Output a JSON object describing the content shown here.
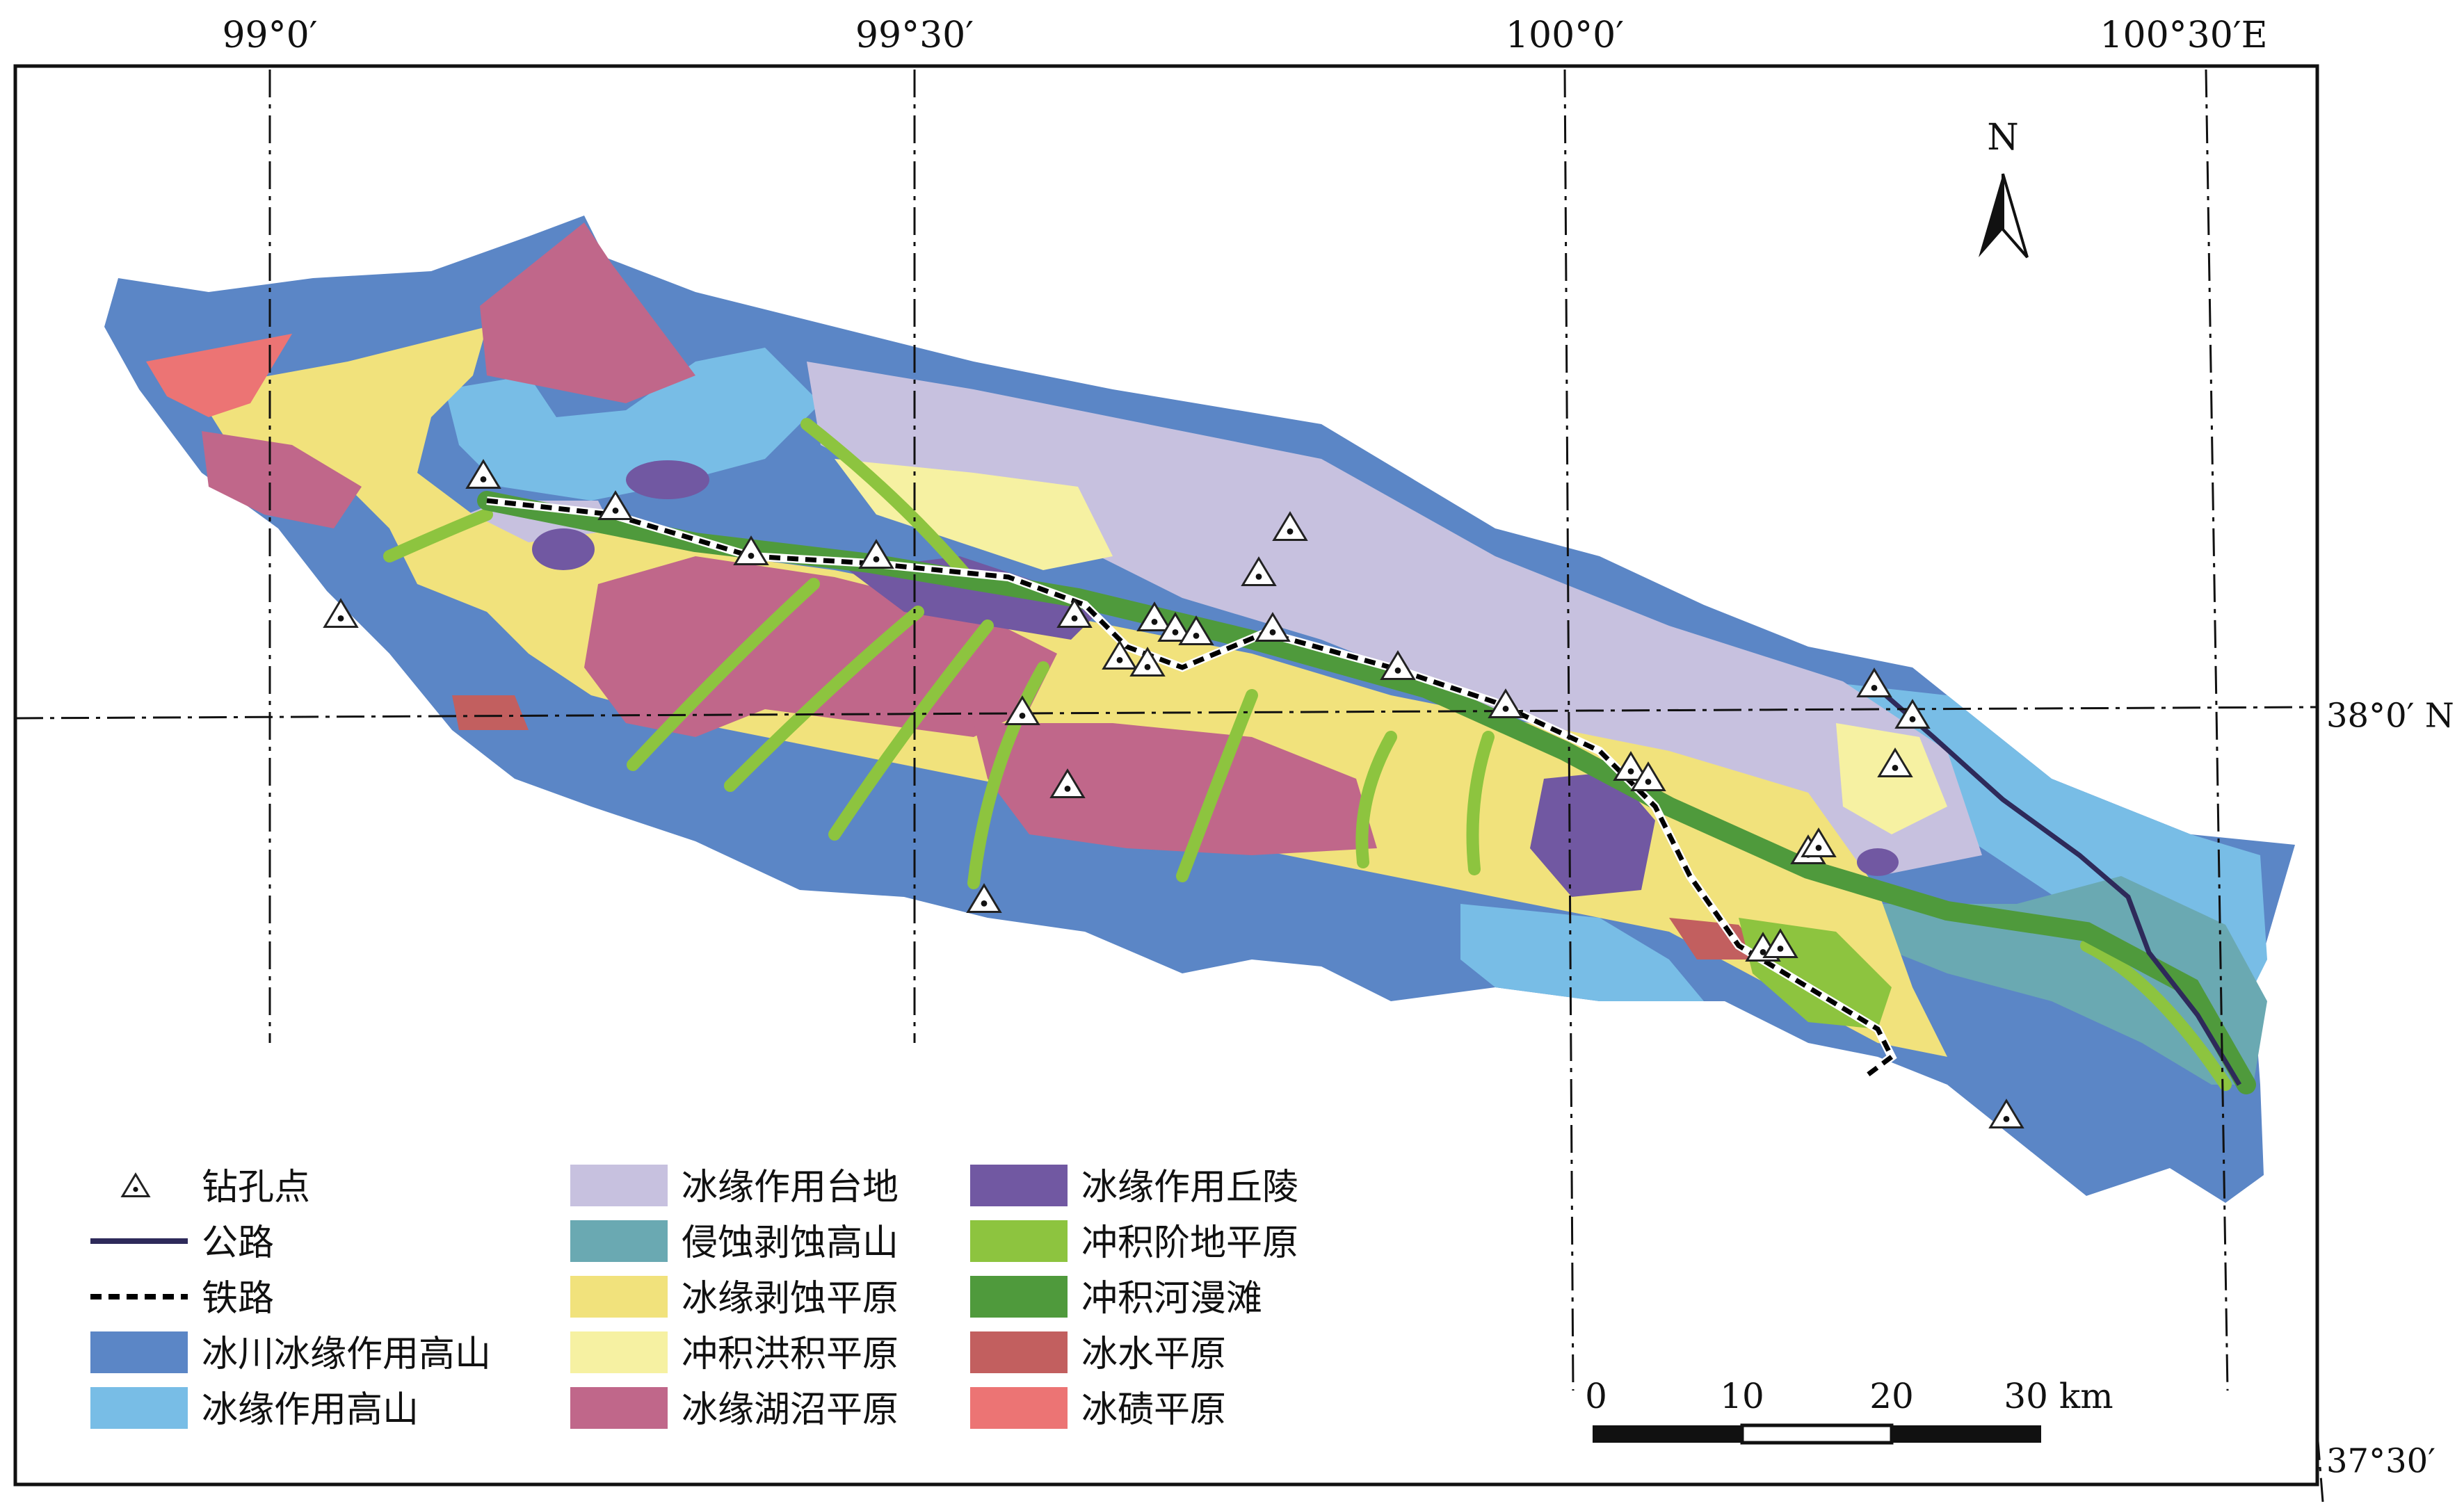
{
  "coords": {
    "top": [
      "99°0′",
      "99°30′",
      "100°0′",
      "100°30′E"
    ],
    "right": [
      "38°0′ N",
      "37°30′"
    ]
  },
  "north_arrow": {
    "label": "N",
    "icon": "north-arrow-icon"
  },
  "scale_bar": {
    "ticks": [
      "0",
      "10",
      "20",
      "30 km"
    ]
  },
  "legend": {
    "items": [
      {
        "label": "钻孔点",
        "type": "borehole",
        "color": "#ffffff"
      },
      {
        "label": "公路",
        "type": "road",
        "color": "#2e2a5a"
      },
      {
        "label": "铁路",
        "type": "railway",
        "color": "#000000"
      },
      {
        "label": "冰川冰缘作用高山",
        "type": "fill",
        "color": "#5b86c6"
      },
      {
        "label": "冰缘作用高山",
        "type": "fill",
        "color": "#78bde6"
      },
      {
        "label": "冰缘作用台地",
        "type": "fill",
        "color": "#c7c1df"
      },
      {
        "label": "侵蚀剥蚀高山",
        "type": "fill",
        "color": "#6aa9b2"
      },
      {
        "label": "冰缘剥蚀平原",
        "type": "fill",
        "color": "#f1e27c"
      },
      {
        "label": "冲积洪积平原",
        "type": "fill",
        "color": "#f6f1a2"
      },
      {
        "label": "冰缘湖沼平原",
        "type": "fill",
        "color": "#c0678a"
      },
      {
        "label": "冰缘作用丘陵",
        "type": "fill",
        "color": "#7158a2"
      },
      {
        "label": "冲积阶地平原",
        "type": "fill",
        "color": "#8dc43f"
      },
      {
        "label": "冲积河漫滩",
        "type": "fill",
        "color": "#4f9a3c"
      },
      {
        "label": "冰水平原",
        "type": "fill",
        "color": "#c25f5f"
      },
      {
        "label": "冰碛平原",
        "type": "fill",
        "color": "#ec7474"
      }
    ]
  }
}
